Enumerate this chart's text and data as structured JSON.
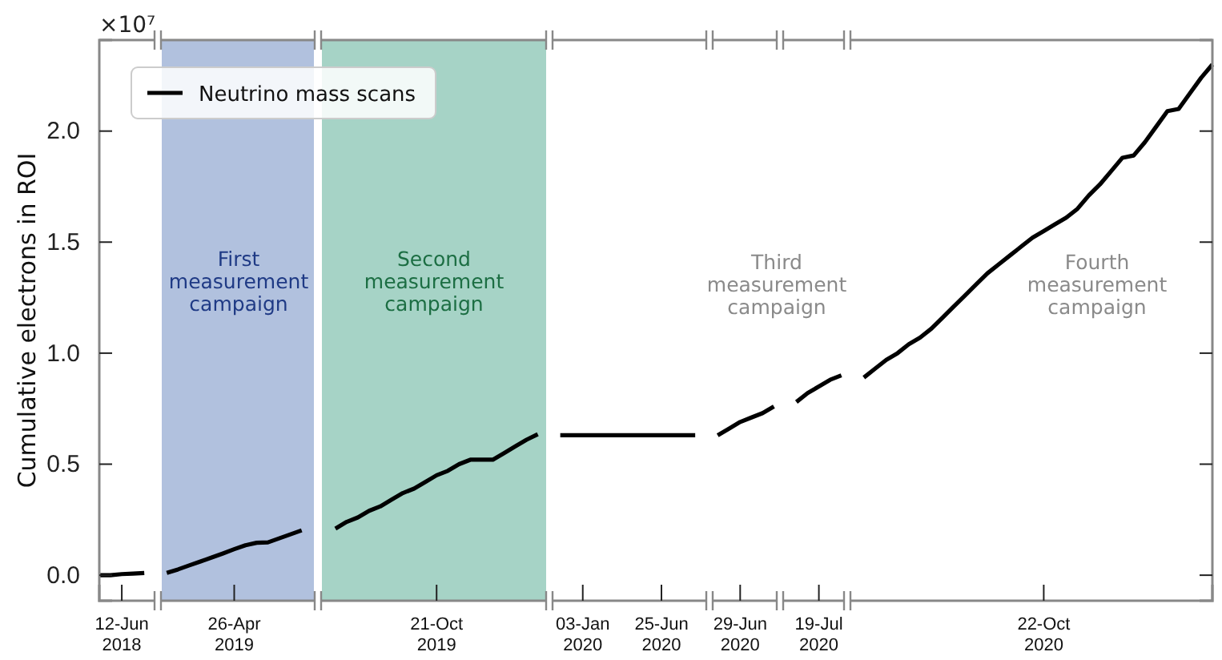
{
  "chart_data": {
    "type": "line",
    "ylabel": "Cumulative electrons in ROI",
    "legend": "top left",
    "annotations": [
      "×10⁷",
      "First\nmeasurement\ncampaign",
      "Second\nmeasurement\ncampaign",
      "Third\nmeasurement\ncampaign",
      "Fourth\nmeasurement\ncampaign"
    ],
    "categories": [
      null,
      null,
      "12-Jun\n2018",
      null,
      null,
      null,
      null,
      null,
      null,
      null,
      null,
      null,
      "26-Apr\n2019",
      null,
      null,
      null,
      null,
      null,
      null,
      null,
      null,
      null,
      null,
      null,
      null,
      null,
      null,
      null,
      null,
      null,
      "21-Oct\n2019",
      null,
      null,
      null,
      null,
      null,
      null,
      null,
      null,
      null,
      null,
      null,
      null,
      "03-Jan\n2020",
      null,
      null,
      null,
      null,
      null,
      null,
      "25-Jun\n2020",
      null,
      null,
      null,
      null,
      null,
      null,
      "29-Jun\n2020",
      null,
      null,
      null,
      null,
      null,
      null,
      "19-Jul\n2020",
      null,
      null,
      null,
      null,
      null,
      null,
      null,
      null,
      null,
      null,
      null,
      null,
      null,
      null,
      null,
      null,
      null,
      null,
      null,
      "22-Oct\n2020",
      null,
      null,
      null,
      null,
      null,
      null,
      null,
      null,
      null,
      null,
      null,
      null,
      null,
      null,
      null
    ],
    "ylim": [
      -0.115,
      2.41
    ],
    "yticks": [
      {
        "value": 0,
        "label": "0.0"
      },
      0.5,
      {
        "value": 1,
        "label": "1.0"
      },
      1.5,
      {
        "value": 2,
        "label": "2.0"
      }
    ],
    "series": [
      {
        "name": "Neutrino mass scans",
        "color": "#000000",
        "values": [
          0,
          0,
          0.005,
          0.007,
          0.01,
          null,
          0.01,
          0.026,
          0.044,
          0.062,
          0.08,
          0.098,
          0.117,
          0.135,
          0.146,
          0.148,
          0.166,
          0.184,
          0.202,
          null,
          null,
          0.21,
          0.24,
          0.26,
          0.29,
          0.31,
          0.34,
          0.37,
          0.39,
          0.42,
          0.45,
          0.47,
          0.5,
          0.52,
          0.52,
          0.52,
          0.55,
          0.58,
          0.61,
          0.635,
          null,
          0.63,
          0.63,
          0.63,
          0.63,
          0.63,
          0.63,
          0.63,
          0.63,
          0.63,
          0.63,
          0.63,
          0.63,
          0.63,
          null,
          0.63,
          0.66,
          0.69,
          0.71,
          0.73,
          0.76,
          null,
          0.78,
          0.82,
          0.85,
          0.88,
          0.9,
          null,
          0.89,
          0.93,
          0.97,
          1.0,
          1.04,
          1.07,
          1.11,
          1.16,
          1.21,
          1.26,
          1.31,
          1.36,
          1.4,
          1.44,
          1.48,
          1.52,
          1.55,
          1.58,
          1.61,
          1.65,
          1.71,
          1.76,
          1.82,
          1.88,
          1.89,
          1.95,
          2.02,
          2.09,
          2.1,
          2.17,
          2.24,
          2.3
        ]
      }
    ]
  }
}
